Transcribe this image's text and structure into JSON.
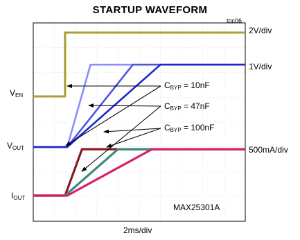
{
  "title": "STARTUP WAVEFORM",
  "figure_tag": "toc06",
  "device": "MAX25301A",
  "time_scale": "2ms/div",
  "channel_scales": {
    "v_en": "2V/div",
    "v_out": "1V/div",
    "i_out": "500mA/div"
  },
  "channel_labels": {
    "v_en": {
      "main": "V",
      "sub": "EN"
    },
    "v_out": {
      "main": "V",
      "sub": "OUT"
    },
    "i_out": {
      "main": "I",
      "sub": "OUT"
    }
  },
  "colors": {
    "v_en": "#a8a030",
    "v_out_10nF": "#8a8cff",
    "v_out_47nF": "#4d55e0",
    "v_out_100nF": "#1a28c8",
    "i_out_10nF": "#8a1820",
    "i_out_47nF": "#3c8a82",
    "i_out_100nF": "#d8206a"
  },
  "chart_data": {
    "type": "line",
    "title": "STARTUP WAVEFORM",
    "xlabel": "2ms/div",
    "x_divisions": 10,
    "y_divisions": 8,
    "annotations": [
      {
        "main": "C",
        "sub": "BYP",
        "text": " = 10nF"
      },
      {
        "main": "C",
        "sub": "BYP",
        "text": " = 47nF"
      },
      {
        "main": "C",
        "sub": "BYP",
        "text": " = 100nF"
      }
    ],
    "series": [
      {
        "channel": "v_en",
        "scale": "2V/div",
        "x": [
          0,
          1.5,
          1.5,
          10
        ],
        "y": [
          0,
          0,
          4.6,
          4.6
        ]
      },
      {
        "channel": "v_out",
        "c_byp": "10nF",
        "scale": "1V/div",
        "x": [
          0,
          1.6,
          2.7,
          10
        ],
        "y": [
          0,
          0,
          5.1,
          5.1
        ]
      },
      {
        "channel": "v_out",
        "c_byp": "47nF",
        "scale": "1V/div",
        "x": [
          0,
          1.6,
          4.7,
          10
        ],
        "y": [
          0,
          0,
          5.1,
          5.1
        ]
      },
      {
        "channel": "v_out",
        "c_byp": "100nF",
        "scale": "1V/div",
        "x": [
          0,
          1.6,
          6.0,
          10
        ],
        "y": [
          0,
          0,
          5.1,
          5.1
        ]
      },
      {
        "channel": "i_out",
        "c_byp": "10nF",
        "scale": "500mA/div",
        "x": [
          0,
          1.5,
          2.3,
          10
        ],
        "y": [
          0,
          0,
          1.3,
          1.3
        ]
      },
      {
        "channel": "i_out",
        "c_byp": "47nF",
        "scale": "500mA/div",
        "x": [
          0,
          1.5,
          4.0,
          10
        ],
        "y": [
          0,
          0,
          1.3,
          1.3
        ]
      },
      {
        "channel": "i_out",
        "c_byp": "100nF",
        "scale": "500mA/div",
        "x": [
          0,
          1.6,
          5.6,
          10
        ],
        "y": [
          0,
          0,
          1.3,
          1.3
        ]
      }
    ]
  }
}
